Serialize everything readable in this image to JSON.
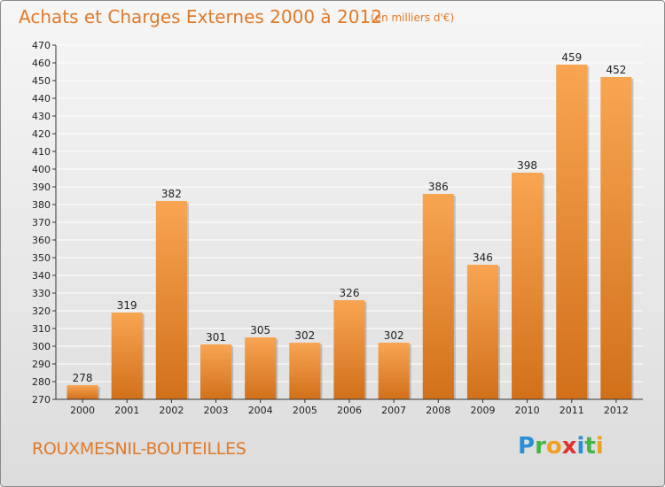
{
  "title": "Achats et Charges Externes 2000 à 2012",
  "subtitle": "(en milliers d'€)",
  "commune": "ROUXMESNIL-BOUTEILLES",
  "logo": {
    "letters": [
      {
        "ch": "P",
        "color": "#2a8fd6"
      },
      {
        "ch": "r",
        "color": "#46b446"
      },
      {
        "ch": "o",
        "color": "#f0a020"
      },
      {
        "ch": "x",
        "color": "#e03030"
      },
      {
        "ch": "i",
        "color": "#2a8fd6"
      },
      {
        "ch": "t",
        "color": "#46b446"
      },
      {
        "ch": "i",
        "color": "#f0a020"
      }
    ]
  },
  "colors": {
    "bar_light": "#f8a552",
    "bar_dark": "#d2701a",
    "text_accent": "#e07a28",
    "grid": "#ffffff",
    "axis": "#333333"
  },
  "chart_data": {
    "type": "bar",
    "categories": [
      "2000",
      "2001",
      "2002",
      "2003",
      "2004",
      "2005",
      "2006",
      "2007",
      "2008",
      "2009",
      "2010",
      "2011",
      "2012"
    ],
    "values": [
      278,
      319,
      382,
      301,
      305,
      302,
      326,
      302,
      386,
      346,
      398,
      459,
      452
    ],
    "ylim": [
      270,
      470
    ],
    "yticks": [
      270,
      280,
      290,
      300,
      310,
      320,
      330,
      340,
      350,
      360,
      370,
      380,
      390,
      400,
      410,
      420,
      430,
      440,
      450,
      460,
      470
    ],
    "grid": true,
    "legend": "none"
  }
}
